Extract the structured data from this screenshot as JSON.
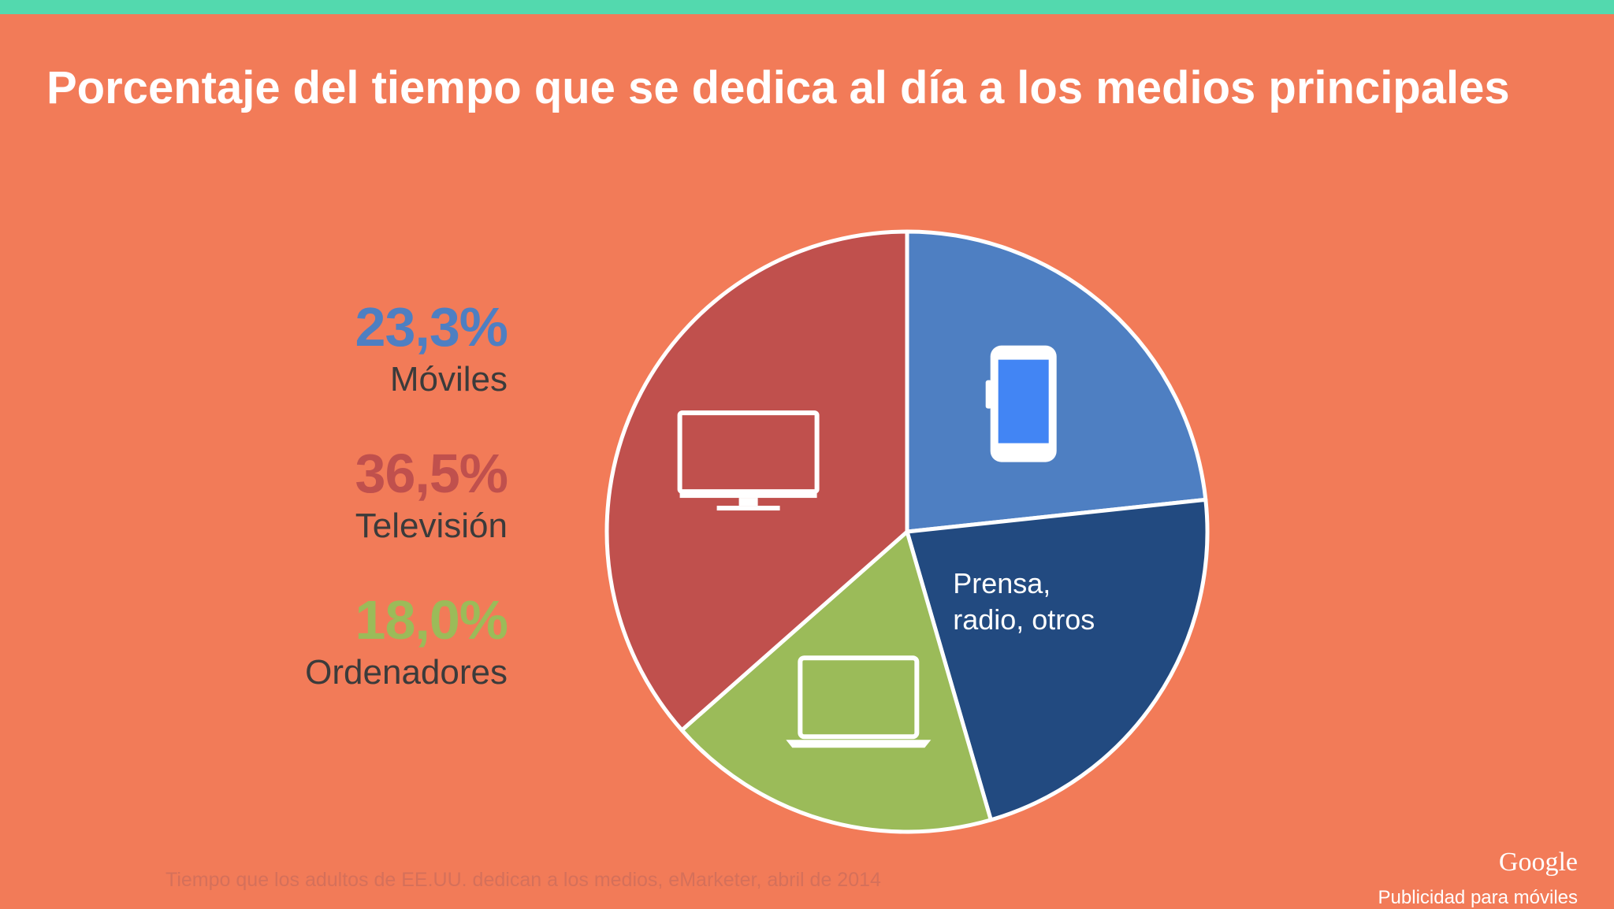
{
  "title": "Porcentaje del tiempo que se dedica al día a los medios principales",
  "legend": [
    {
      "value": "23,3%",
      "label": "Móviles",
      "color": "#4E7FC2"
    },
    {
      "value": "36,5%",
      "label": "Televisión",
      "color": "#C0504D"
    },
    {
      "value": "18,0%",
      "label": "Ordenadores",
      "color": "#9BBB59"
    }
  ],
  "chart_data": {
    "type": "pie",
    "categories": [
      "Móviles",
      "Prensa, radio, otros",
      "Ordenadores",
      "Televisión"
    ],
    "values": [
      23.3,
      22.2,
      18.0,
      36.5
    ],
    "colors": [
      "#4E7FC2",
      "#224A80",
      "#9BBB59",
      "#C0504D"
    ],
    "slice_labels": [
      "",
      "Prensa,\nradio, otros",
      "",
      ""
    ],
    "slice_icons": [
      "smartphone-icon",
      "",
      "laptop-icon",
      "tv-monitor-icon"
    ],
    "start_angle_deg": 270,
    "direction": "clockwise",
    "slice_border_color": "#FFFFFF"
  },
  "source": "Tiempo que los adultos de EE.UU. dedican a los medios, eMarketer, abril de 2014",
  "brand": {
    "logo": "Google",
    "subtitle": "Publicidad para móviles"
  }
}
